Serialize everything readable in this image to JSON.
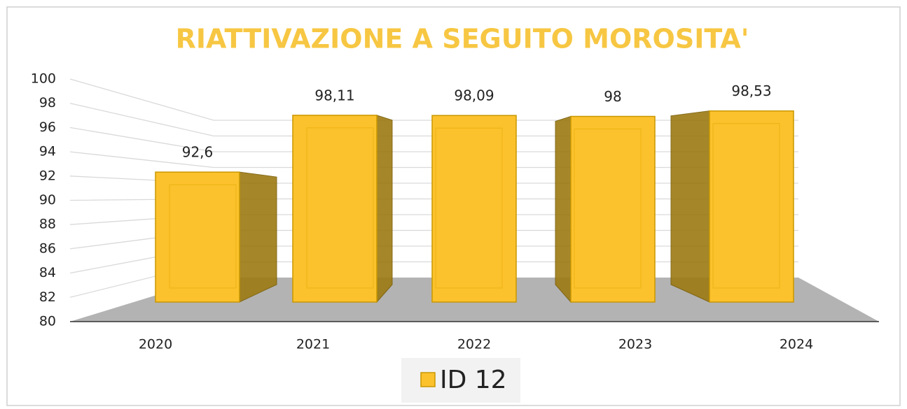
{
  "chart_data": {
    "type": "bar3d",
    "title": "RIATTIVAZIONE A SEGUITO MOROSITA'",
    "categories": [
      "2020",
      "2021",
      "2022",
      "2023",
      "2024"
    ],
    "series": [
      {
        "name": "ID 12",
        "color": "#fcc22d",
        "values": [
          92.6,
          98.11,
          98.09,
          98,
          98.53
        ],
        "value_labels": [
          "92,6",
          "98,11",
          "98,09",
          "98",
          "98,53"
        ]
      }
    ],
    "ylim": [
      80,
      100
    ],
    "yticks": [
      80,
      82,
      84,
      86,
      88,
      90,
      92,
      94,
      96,
      98,
      100
    ],
    "grid": true,
    "legend": "bottom"
  }
}
